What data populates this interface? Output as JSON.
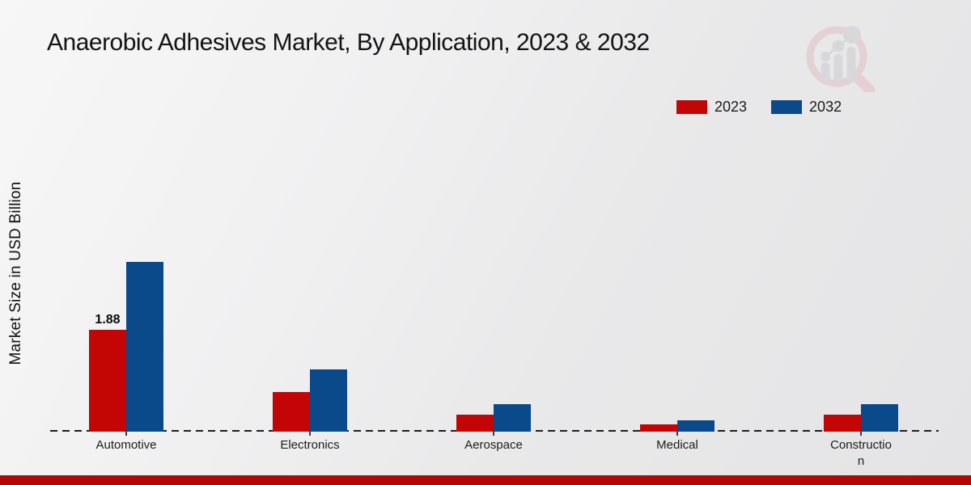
{
  "title": "Anaerobic Adhesives Market, By Application, 2023 & 2032",
  "ylabel": "Market Size in USD Billion",
  "legend": {
    "items": [
      {
        "label": "2023",
        "color": "#c40505"
      },
      {
        "label": "2032",
        "color": "#0a4a8a"
      }
    ],
    "position": "top-right"
  },
  "icons": {
    "watermark": "magnifier-bar-chart-logo"
  },
  "colors": {
    "series_2023": "#c40505",
    "series_2032": "#0a4a8a",
    "axis": "#1f1f1f",
    "bottom_strip": "#b50505",
    "background": "#ededee"
  },
  "chart_data": {
    "type": "bar",
    "title": "Anaerobic Adhesives Market, By Application, 2023 & 2032",
    "xlabel": "",
    "ylabel": "Market Size in USD Billion",
    "categories": [
      "Automotive",
      "Electronics",
      "Aerospace",
      "Medical",
      "Construction"
    ],
    "series": [
      {
        "name": "2023",
        "color": "#c40505",
        "values": [
          1.88,
          0.73,
          0.32,
          0.13,
          0.31
        ]
      },
      {
        "name": "2032",
        "color": "#0a4a8a",
        "values": [
          3.13,
          1.15,
          0.5,
          0.21,
          0.51
        ]
      }
    ],
    "value_labels": [
      {
        "category": "Automotive",
        "series": "2023",
        "text": "1.88"
      }
    ],
    "ylim": [
      0,
      3.5
    ],
    "grid": false,
    "y_axis_ticks_visible": false,
    "baseline_style": "dashed",
    "legend_position": "top-right"
  }
}
